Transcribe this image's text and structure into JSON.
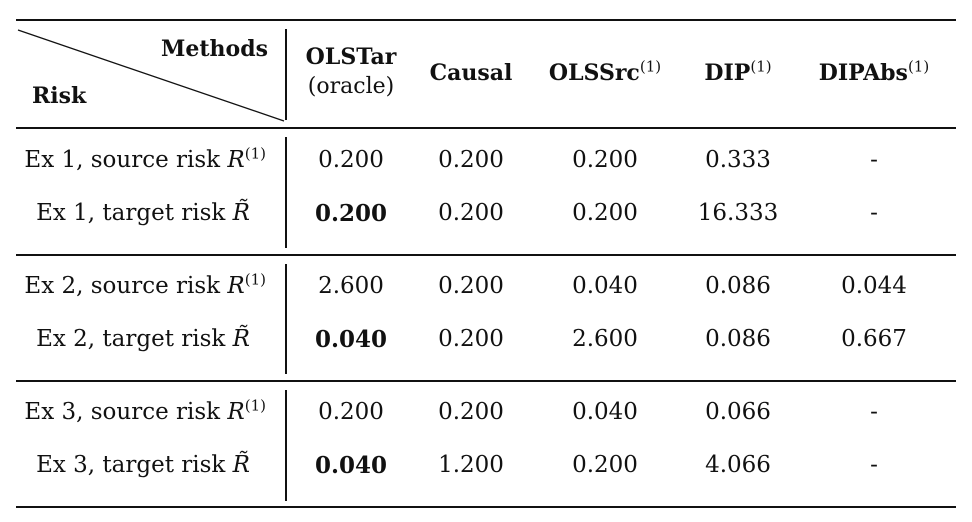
{
  "header": {
    "methods_label": "Methods",
    "risk_label": "Risk",
    "columns": [
      {
        "name": "OLSTar",
        "sub": "(oracle)",
        "sup": ""
      },
      {
        "name": "Causal",
        "sub": "",
        "sup": ""
      },
      {
        "name": "OLSSrc",
        "sub": "",
        "sup": "(1)"
      },
      {
        "name": "DIP",
        "sub": "",
        "sup": "(1)"
      },
      {
        "name": "DIPAbs",
        "sub": "",
        "sup": "(1)"
      }
    ]
  },
  "rows": [
    {
      "label_prefix": "Ex 1, source risk ",
      "symbol": "R",
      "symbol_sup": "(1)",
      "values": [
        "0.200",
        "0.200",
        "0.200",
        "0.333",
        "-"
      ],
      "bold_first": false
    },
    {
      "label_prefix": "Ex 1, target risk ",
      "symbol": "R̃",
      "symbol_sup": "",
      "values": [
        "0.200",
        "0.200",
        "0.200",
        "16.333",
        "-"
      ],
      "bold_first": true
    },
    {
      "label_prefix": "Ex 2, source risk ",
      "symbol": "R",
      "symbol_sup": "(1)",
      "values": [
        "2.600",
        "0.200",
        "0.040",
        "0.086",
        "0.044"
      ],
      "bold_first": false
    },
    {
      "label_prefix": "Ex 2, target risk ",
      "symbol": "R̃",
      "symbol_sup": "",
      "values": [
        "0.040",
        "0.200",
        "2.600",
        "0.086",
        "0.667"
      ],
      "bold_first": true
    },
    {
      "label_prefix": "Ex 3, source risk ",
      "symbol": "R",
      "symbol_sup": "(1)",
      "values": [
        "0.200",
        "0.200",
        "0.040",
        "0.066",
        "-"
      ],
      "bold_first": false
    },
    {
      "label_prefix": "Ex 3, target risk ",
      "symbol": "R̃",
      "symbol_sup": "",
      "values": [
        "0.040",
        "1.200",
        "0.200",
        "4.066",
        "-"
      ],
      "bold_first": true
    }
  ]
}
